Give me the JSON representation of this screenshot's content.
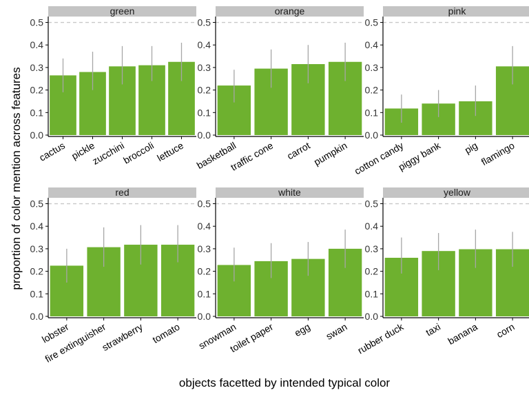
{
  "chart_data": {
    "type": "bar",
    "xlabel": "objects facetted by intended typical color",
    "ylabel": "proportion of color mention across features",
    "ylim": [
      0,
      0.52
    ],
    "yticks": [
      0.0,
      0.1,
      0.2,
      0.3,
      0.4,
      0.5
    ],
    "ytick_labels": [
      "0.0",
      "0.1",
      "0.2",
      "0.3",
      "0.4",
      "0.5"
    ],
    "reference_line": 0.5,
    "grid": false,
    "bar_color": "#6eb12f",
    "errorbar_color": "#a6a6a6",
    "strip_color": "#c4c4c4",
    "reference_line_color": "#c8c8c8",
    "facets": [
      {
        "name": "green",
        "categories": [
          "cactus",
          "pickle",
          "zucchini",
          "broccoli",
          "lettuce"
        ],
        "values": [
          0.265,
          0.28,
          0.305,
          0.31,
          0.325
        ],
        "error_low": [
          0.19,
          0.2,
          0.225,
          0.24,
          0.24
        ],
        "error_high": [
          0.34,
          0.37,
          0.395,
          0.395,
          0.41
        ]
      },
      {
        "name": "orange",
        "categories": [
          "basketball",
          "traffic cone",
          "carrot",
          "pumpkin"
        ],
        "values": [
          0.22,
          0.295,
          0.315,
          0.325
        ],
        "error_low": [
          0.145,
          0.21,
          0.23,
          0.24
        ],
        "error_high": [
          0.29,
          0.38,
          0.4,
          0.41
        ]
      },
      {
        "name": "pink",
        "categories": [
          "cotton candy",
          "piggy bank",
          "pig",
          "flamingo"
        ],
        "values": [
          0.118,
          0.14,
          0.15,
          0.305
        ],
        "error_low": [
          0.055,
          0.08,
          0.085,
          0.225
        ],
        "error_high": [
          0.18,
          0.2,
          0.22,
          0.395
        ]
      },
      {
        "name": "red",
        "categories": [
          "lobster",
          "fire extinguisher",
          "strawberry",
          "tomato"
        ],
        "values": [
          0.225,
          0.307,
          0.318,
          0.318
        ],
        "error_low": [
          0.15,
          0.22,
          0.23,
          0.24
        ],
        "error_high": [
          0.3,
          0.395,
          0.405,
          0.405
        ]
      },
      {
        "name": "white",
        "categories": [
          "snowman",
          "toilet paper",
          "egg",
          "swan"
        ],
        "values": [
          0.228,
          0.245,
          0.255,
          0.3
        ],
        "error_low": [
          0.155,
          0.17,
          0.18,
          0.215
        ],
        "error_high": [
          0.305,
          0.325,
          0.33,
          0.385
        ]
      },
      {
        "name": "yellow",
        "categories": [
          "rubber duck",
          "taxi",
          "banana",
          "corn"
        ],
        "values": [
          0.26,
          0.29,
          0.298,
          0.298
        ],
        "error_low": [
          0.19,
          0.205,
          0.215,
          0.22
        ],
        "error_high": [
          0.35,
          0.37,
          0.385,
          0.375
        ]
      }
    ]
  }
}
